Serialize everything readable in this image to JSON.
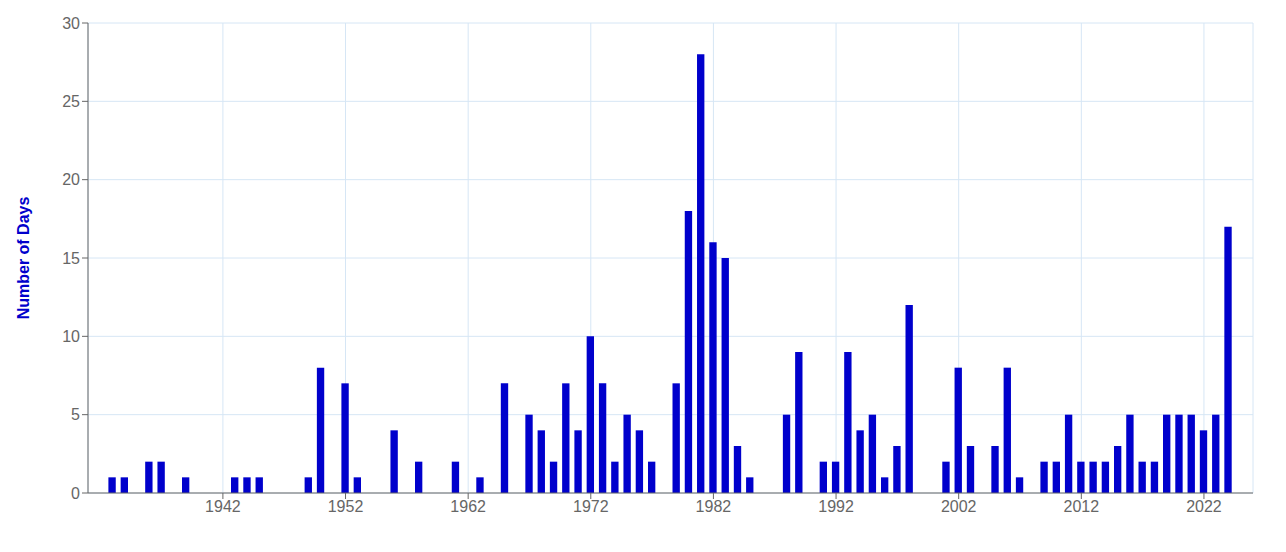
{
  "chart_data": {
    "type": "bar",
    "ylabel": "Number of Days",
    "x": [
      1933,
      1934,
      1935,
      1936,
      1937,
      1938,
      1939,
      1940,
      1941,
      1942,
      1943,
      1944,
      1945,
      1946,
      1947,
      1948,
      1949,
      1950,
      1951,
      1952,
      1953,
      1954,
      1955,
      1956,
      1957,
      1958,
      1959,
      1960,
      1961,
      1962,
      1963,
      1964,
      1965,
      1966,
      1967,
      1968,
      1969,
      1970,
      1971,
      1972,
      1973,
      1974,
      1975,
      1976,
      1977,
      1978,
      1979,
      1980,
      1981,
      1982,
      1983,
      1984,
      1985,
      1986,
      1987,
      1988,
      1989,
      1990,
      1991,
      1992,
      1993,
      1994,
      1995,
      1996,
      1997,
      1998,
      1999,
      2000,
      2001,
      2002,
      2003,
      2004,
      2005,
      2006,
      2007,
      2008,
      2009,
      2010,
      2011,
      2012,
      2013,
      2014,
      2015,
      2016,
      2017,
      2018,
      2019,
      2020,
      2021,
      2022,
      2023,
      2024
    ],
    "values": [
      1,
      1,
      0,
      2,
      2,
      0,
      1,
      0,
      0,
      0,
      1,
      1,
      1,
      0,
      0,
      0,
      1,
      8,
      0,
      7,
      1,
      0,
      0,
      4,
      0,
      2,
      0,
      0,
      2,
      0,
      1,
      0,
      7,
      0,
      5,
      4,
      2,
      7,
      4,
      10,
      7,
      2,
      5,
      4,
      2,
      0,
      7,
      18,
      28,
      16,
      15,
      3,
      1,
      0,
      0,
      5,
      9,
      0,
      2,
      2,
      9,
      4,
      5,
      1,
      3,
      12,
      0,
      0,
      2,
      8,
      3,
      0,
      3,
      8,
      1,
      0,
      2,
      2,
      5,
      2,
      2,
      2,
      3,
      5,
      2,
      2,
      5,
      5,
      5,
      4,
      5,
      17
    ],
    "color": "#0000cc",
    "xlim": [
      1931,
      2026
    ],
    "xticks": [
      1942,
      1952,
      1962,
      1972,
      1982,
      1992,
      2002,
      2012,
      2022
    ],
    "ylim": [
      0,
      30
    ],
    "yticks": [
      0,
      5,
      10,
      15,
      20,
      25,
      30
    ],
    "grid": true
  }
}
